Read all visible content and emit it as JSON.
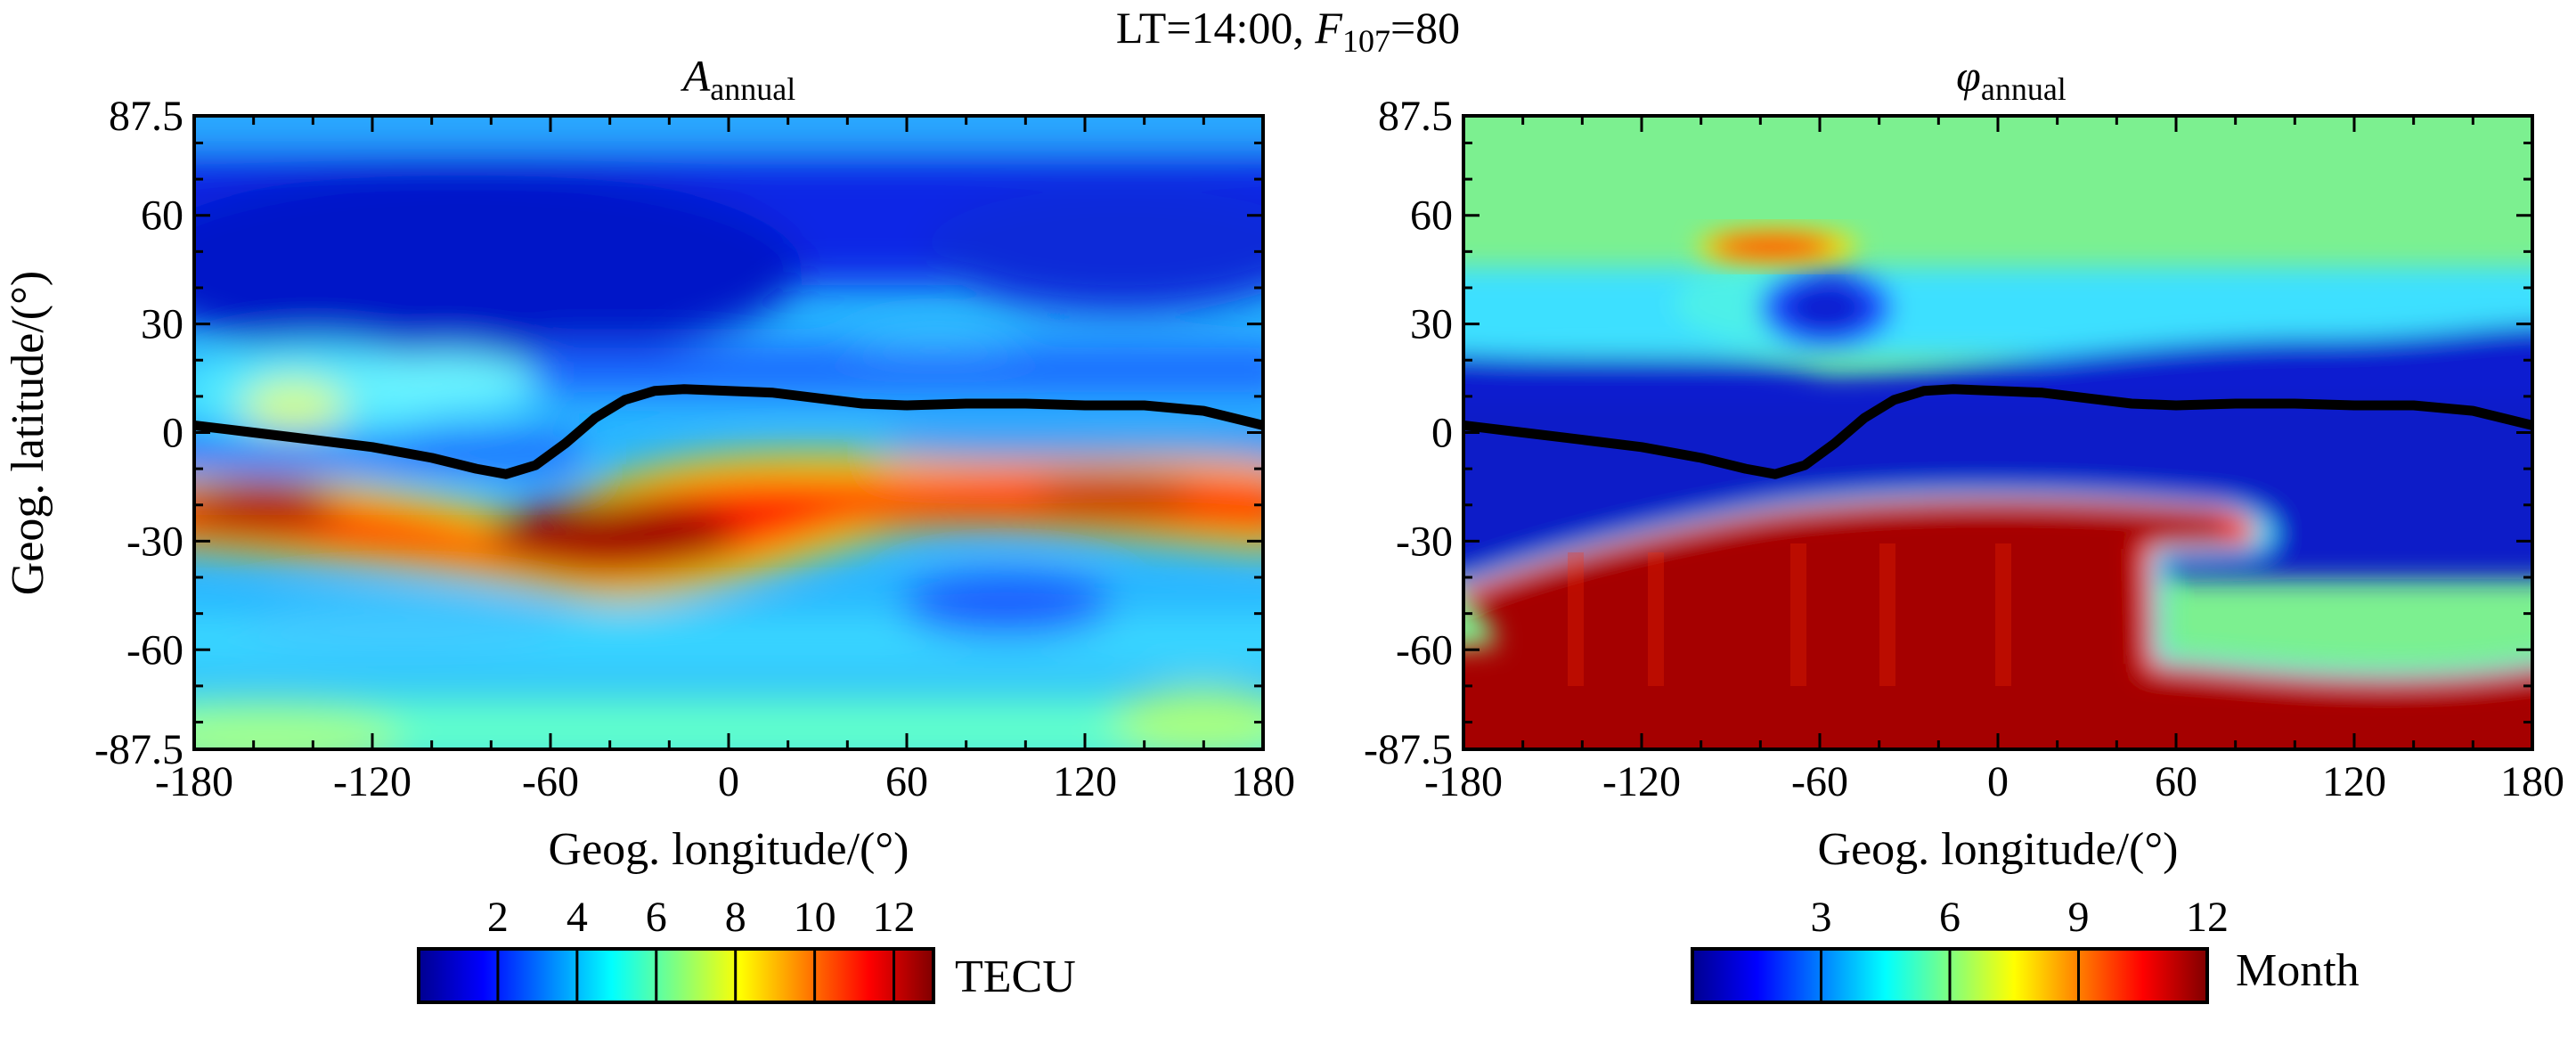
{
  "figure_title": {
    "prefix": "LT=14:00, ",
    "f_letter": "F",
    "f_subscript": "107",
    "suffix": "=80"
  },
  "chart_data": [
    {
      "type": "heatmap",
      "title_symbol": "A",
      "title_subscript": "annual",
      "xlabel": "Geog. longitude/(°)",
      "ylabel": "Geog. latitude/(°)",
      "xlim": [
        -180,
        180
      ],
      "ylim": [
        -87.5,
        87.5
      ],
      "x_ticks": [
        -180,
        -120,
        -60,
        0,
        60,
        120,
        180
      ],
      "x_tick_labels": [
        "-180",
        "-120",
        "-60",
        "0",
        "60",
        "120",
        "180"
      ],
      "y_ticks": [
        87.5,
        60,
        30,
        0,
        -30,
        -60,
        -87.5
      ],
      "y_tick_labels": [
        "87.5",
        "60",
        "30",
        "0",
        "-30",
        "-60",
        "-87.5"
      ],
      "colormap": "jet",
      "colorbar": {
        "min": 0,
        "max": 13,
        "ticks": [
          2,
          4,
          6,
          8,
          10,
          12
        ],
        "tick_labels": [
          "2",
          "4",
          "6",
          "8",
          "10",
          "12"
        ],
        "unit": "TECU",
        "placement": "bottom"
      },
      "features": [
        {
          "description": "equatorial ionization anomaly crest",
          "lon_range": [
            -180,
            180
          ],
          "lat_center_approx": -22,
          "peak_value_approx": 12
        },
        {
          "description": "secondary crest",
          "lon": -150,
          "lat": 10,
          "value_approx": 8
        },
        {
          "description": "minimum band",
          "lat_range": [
            35,
            65
          ],
          "value_approx": 1
        }
      ]
    },
    {
      "type": "heatmap",
      "title_symbol": "φ",
      "title_subscript": "annual",
      "xlabel": "Geog. longitude/(°)",
      "ylabel": "",
      "xlim": [
        -180,
        180
      ],
      "ylim": [
        -87.5,
        87.5
      ],
      "x_ticks": [
        -180,
        -120,
        -60,
        0,
        60,
        120,
        180
      ],
      "x_tick_labels": [
        "-180",
        "-120",
        "-60",
        "0",
        "60",
        "120",
        "180"
      ],
      "y_ticks": [
        87.5,
        60,
        30,
        0,
        -30,
        -60,
        -87.5
      ],
      "y_tick_labels": [
        "87.5",
        "60",
        "30",
        "0",
        "-30",
        "-60",
        "-87.5"
      ],
      "colormap": "jet",
      "colorbar": {
        "min": 0,
        "max": 12,
        "ticks": [
          3,
          6,
          9,
          12
        ],
        "tick_labels": [
          "3",
          "6",
          "9",
          "12"
        ],
        "unit": "Month",
        "placement": "bottom"
      },
      "features": [
        {
          "description": "northern region",
          "lat_range": [
            55,
            87.5
          ],
          "value_approx": 6
        },
        {
          "description": "northern patch",
          "lon": -85,
          "lat": 52,
          "value_approx": 11
        },
        {
          "description": "southern region",
          "lat_range": [
            -87.5,
            -20
          ],
          "lon_range": [
            -180,
            50
          ],
          "value_approx": 12
        },
        {
          "description": "equatorial band",
          "lat_range": [
            -20,
            25
          ],
          "value_approx": 1
        }
      ]
    }
  ],
  "magnetic_equator": {
    "lon": [
      -180,
      -160,
      -140,
      -120,
      -100,
      -85,
      -75,
      -65,
      -55,
      -45,
      -35,
      -25,
      -15,
      0,
      15,
      30,
      45,
      60,
      80,
      100,
      120,
      140,
      160,
      180
    ],
    "lat": [
      2,
      0,
      -2,
      -4,
      -7,
      -10,
      -11.5,
      -9,
      -3,
      4,
      9,
      11.5,
      12,
      11.5,
      11,
      9.5,
      8,
      7.5,
      8,
      8,
      7.5,
      7.5,
      6,
      2
    ]
  }
}
